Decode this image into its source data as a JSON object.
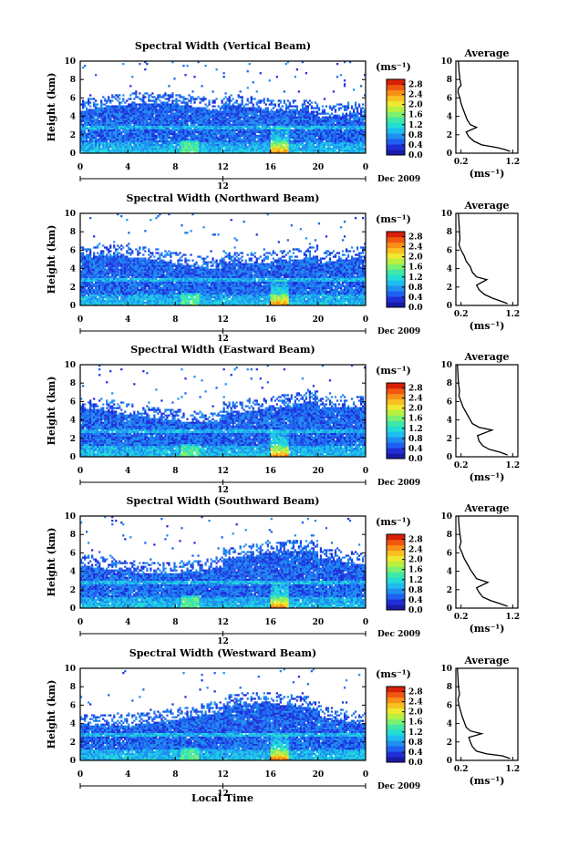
{
  "figure": {
    "xlabel": "Local Time",
    "date_label": "Dec 2009",
    "height_label": "Height (km)",
    "unit_label": "(ms⁻¹)",
    "avg_title": "Average",
    "avg_unit": "(ms⁻¹)"
  },
  "colorbar": {
    "ticks": [
      "0.0",
      "0.4",
      "0.8",
      "1.2",
      "1.6",
      "2.0",
      "2.4",
      "2.8"
    ],
    "vmin": 0.0,
    "vmax": 3.0,
    "colors": [
      "#1a1aa8",
      "#1f2fd8",
      "#2060f0",
      "#1f8ff0",
      "#1fbcef",
      "#22dcd6",
      "#3fe8a8",
      "#7cf070",
      "#b8f040",
      "#eee830",
      "#f8c020",
      "#f89018",
      "#f05810",
      "#d82008"
    ]
  },
  "chart_data": [
    {
      "type": "heatmap",
      "title": "Spectral Width (Vertical Beam)",
      "xlabel": "",
      "ylabel": "Height (km)",
      "x_ticks": [
        "0",
        "4",
        "8",
        "12",
        "16",
        "20",
        "0"
      ],
      "y_ticks": [
        "0",
        "2",
        "4",
        "6",
        "8",
        "10"
      ],
      "xlim": [
        0,
        24
      ],
      "ylim": [
        0,
        10
      ],
      "colorbar_unit": "(ms⁻¹)",
      "average_profile": {
        "title": "Average",
        "xlabel": "(ms⁻¹)",
        "x_ticks": [
          "0.2",
          "1.2"
        ],
        "y_ticks": [
          "0",
          "2",
          "4",
          "6",
          "8",
          "10"
        ],
        "xlim": [
          0.1,
          1.3
        ],
        "ylim": [
          0,
          10
        ],
        "points": [
          [
            1.15,
            0.2
          ],
          [
            1.05,
            0.4
          ],
          [
            0.9,
            0.6
          ],
          [
            0.6,
            0.9
          ],
          [
            0.45,
            1.3
          ],
          [
            0.35,
            1.8
          ],
          [
            0.3,
            2.3
          ],
          [
            0.5,
            2.8
          ],
          [
            0.38,
            3.1
          ],
          [
            0.32,
            3.6
          ],
          [
            0.28,
            4.2
          ],
          [
            0.24,
            4.8
          ],
          [
            0.2,
            5.4
          ],
          [
            0.18,
            6.0
          ],
          [
            0.14,
            6.6
          ],
          [
            0.15,
            7.0
          ],
          [
            0.2,
            7.4
          ],
          [
            0.18,
            8.0
          ],
          [
            0.16,
            9.0
          ],
          [
            0.15,
            10.0
          ]
        ]
      }
    },
    {
      "type": "heatmap",
      "title": "Spectral Width (Northward Beam)",
      "xlabel": "",
      "ylabel": "Height (km)",
      "x_ticks": [
        "0",
        "4",
        "8",
        "12",
        "16",
        "20",
        "0"
      ],
      "y_ticks": [
        "0",
        "2",
        "4",
        "6",
        "8",
        "10"
      ],
      "xlim": [
        0,
        24
      ],
      "ylim": [
        0,
        10
      ],
      "colorbar_unit": "(ms⁻¹)",
      "average_profile": {
        "title": "Average",
        "xlabel": "(ms⁻¹)",
        "x_ticks": [
          "0.2",
          "1.2"
        ],
        "y_ticks": [
          "0",
          "2",
          "4",
          "6",
          "8",
          "10"
        ],
        "xlim": [
          0.1,
          1.3
        ],
        "ylim": [
          0,
          10
        ],
        "points": [
          [
            1.1,
            0.2
          ],
          [
            0.95,
            0.5
          ],
          [
            0.8,
            0.8
          ],
          [
            0.65,
            1.2
          ],
          [
            0.55,
            1.7
          ],
          [
            0.5,
            2.2
          ],
          [
            0.7,
            2.8
          ],
          [
            0.5,
            3.1
          ],
          [
            0.42,
            3.6
          ],
          [
            0.38,
            4.2
          ],
          [
            0.3,
            4.8
          ],
          [
            0.26,
            5.4
          ],
          [
            0.2,
            6.0
          ],
          [
            0.16,
            6.6
          ],
          [
            0.18,
            7.2
          ],
          [
            0.17,
            8.0
          ],
          [
            0.16,
            9.0
          ],
          [
            0.15,
            10.0
          ]
        ]
      }
    },
    {
      "type": "heatmap",
      "title": "Spectral Width (Eastward Beam)",
      "xlabel": "",
      "ylabel": "Height (km)",
      "x_ticks": [
        "0",
        "4",
        "8",
        "12",
        "16",
        "20",
        "0"
      ],
      "y_ticks": [
        "0",
        "2",
        "4",
        "6",
        "8",
        "10"
      ],
      "xlim": [
        0,
        24
      ],
      "ylim": [
        0,
        10
      ],
      "colorbar_unit": "(ms⁻¹)",
      "average_profile": {
        "title": "Average",
        "xlabel": "(ms⁻¹)",
        "x_ticks": [
          "0.2",
          "1.2"
        ],
        "y_ticks": [
          "0",
          "2",
          "4",
          "6",
          "8",
          "10"
        ],
        "xlim": [
          0.1,
          1.3
        ],
        "ylim": [
          0,
          10
        ],
        "points": [
          [
            1.1,
            0.2
          ],
          [
            0.95,
            0.5
          ],
          [
            0.75,
            0.8
          ],
          [
            0.62,
            1.2
          ],
          [
            0.55,
            1.7
          ],
          [
            0.52,
            2.3
          ],
          [
            0.8,
            2.9
          ],
          [
            0.55,
            3.2
          ],
          [
            0.42,
            3.6
          ],
          [
            0.36,
            4.2
          ],
          [
            0.3,
            4.8
          ],
          [
            0.24,
            5.4
          ],
          [
            0.2,
            6.0
          ],
          [
            0.16,
            6.6
          ],
          [
            0.17,
            7.2
          ],
          [
            0.15,
            8.0
          ],
          [
            0.14,
            9.0
          ],
          [
            0.13,
            10.0
          ]
        ]
      }
    },
    {
      "type": "heatmap",
      "title": "Spectral Width (Southward Beam)",
      "xlabel": "",
      "ylabel": "Height (km)",
      "x_ticks": [
        "0",
        "4",
        "8",
        "12",
        "16",
        "20",
        "0"
      ],
      "y_ticks": [
        "0",
        "2",
        "4",
        "6",
        "8",
        "10"
      ],
      "xlim": [
        0,
        24
      ],
      "ylim": [
        0,
        10
      ],
      "colorbar_unit": "(ms⁻¹)",
      "average_profile": {
        "title": "Average",
        "xlabel": "(ms⁻¹)",
        "x_ticks": [
          "0.2",
          "1.2"
        ],
        "y_ticks": [
          "0",
          "2",
          "4",
          "6",
          "8",
          "10"
        ],
        "xlim": [
          0.1,
          1.3
        ],
        "ylim": [
          0,
          10
        ],
        "points": [
          [
            1.1,
            0.2
          ],
          [
            0.95,
            0.5
          ],
          [
            0.78,
            0.8
          ],
          [
            0.62,
            1.2
          ],
          [
            0.55,
            1.7
          ],
          [
            0.5,
            2.2
          ],
          [
            0.72,
            2.8
          ],
          [
            0.5,
            3.2
          ],
          [
            0.44,
            3.7
          ],
          [
            0.38,
            4.2
          ],
          [
            0.32,
            4.8
          ],
          [
            0.26,
            5.4
          ],
          [
            0.22,
            6.0
          ],
          [
            0.17,
            6.6
          ],
          [
            0.2,
            7.2
          ],
          [
            0.18,
            8.0
          ],
          [
            0.16,
            9.0
          ],
          [
            0.15,
            10.0
          ]
        ]
      }
    },
    {
      "type": "heatmap",
      "title": "Spectral Width (Westward Beam)",
      "xlabel": "Local Time",
      "ylabel": "Height (km)",
      "x_ticks": [
        "0",
        "4",
        "8",
        "12",
        "16",
        "20",
        "0"
      ],
      "y_ticks": [
        "0",
        "2",
        "4",
        "6",
        "8",
        "10"
      ],
      "xlim": [
        0,
        24
      ],
      "ylim": [
        0,
        10
      ],
      "colorbar_unit": "(ms⁻¹)",
      "average_profile": {
        "title": "Average",
        "xlabel": "(ms⁻¹)",
        "x_ticks": [
          "0.2",
          "1.2"
        ],
        "y_ticks": [
          "0",
          "2",
          "4",
          "6",
          "8",
          "10"
        ],
        "xlim": [
          0.1,
          1.3
        ],
        "ylim": [
          0,
          10
        ],
        "points": [
          [
            1.15,
            0.2
          ],
          [
            1.0,
            0.5
          ],
          [
            0.7,
            0.7
          ],
          [
            0.5,
            1.0
          ],
          [
            0.42,
            1.5
          ],
          [
            0.38,
            2.0
          ],
          [
            0.35,
            2.5
          ],
          [
            0.6,
            2.9
          ],
          [
            0.38,
            3.2
          ],
          [
            0.3,
            3.6
          ],
          [
            0.26,
            4.2
          ],
          [
            0.22,
            4.8
          ],
          [
            0.19,
            5.4
          ],
          [
            0.16,
            6.0
          ],
          [
            0.14,
            6.6
          ],
          [
            0.17,
            7.2
          ],
          [
            0.15,
            8.0
          ],
          [
            0.14,
            9.0
          ],
          [
            0.13,
            10.0
          ]
        ]
      }
    }
  ]
}
